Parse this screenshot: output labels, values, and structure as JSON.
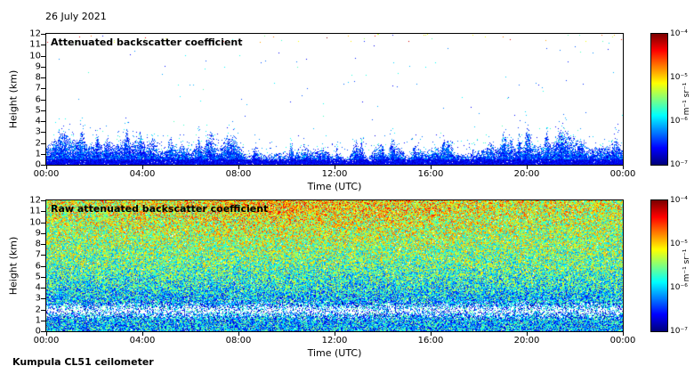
{
  "figure": {
    "date_label": "26 July 2021",
    "footer": "Kumpula CL51 ceilometer"
  },
  "chart_data": [
    {
      "type": "heatmap",
      "title": "Attenuated backscatter coefficient",
      "xlabel": "Time (UTC)",
      "ylabel": "Height (km)",
      "x_tick_labels": [
        "00:00",
        "04:00",
        "08:00",
        "12:00",
        "16:00",
        "20:00",
        "00:00"
      ],
      "y_tick_labels": [
        "0",
        "1",
        "2",
        "3",
        "4",
        "5",
        "6",
        "7",
        "8",
        "9",
        "10",
        "11",
        "12"
      ],
      "x_range_hours": [
        0,
        24
      ],
      "y_range_km": [
        0,
        12
      ],
      "colormap": "jet",
      "colorbar": {
        "min": 1e-07,
        "max": 0.0001,
        "scale": "log",
        "tick_labels": [
          "10⁻⁴",
          "10⁻⁵",
          "10⁻⁶",
          "10⁻⁷"
        ],
        "unit": "m⁻¹ sr⁻¹"
      },
      "features": "White (below detection) above the boundary layer; dense blue aerosol signal from the surface up to a ragged 1-3 km top, higher near 00:00 and after 16:00; sparse multicoloured noise specks near 12 km",
      "render": {
        "style": "attenuated",
        "seed": 1337
      }
    },
    {
      "type": "heatmap",
      "title": "Raw attenuated backscatter coefficient",
      "xlabel": "Time (UTC)",
      "ylabel": "Height (km)",
      "x_tick_labels": [
        "00:00",
        "04:00",
        "08:00",
        "12:00",
        "16:00",
        "20:00",
        "00:00"
      ],
      "y_tick_labels": [
        "0",
        "1",
        "2",
        "3",
        "4",
        "5",
        "6",
        "7",
        "8",
        "9",
        "10",
        "11",
        "12"
      ],
      "x_range_hours": [
        0,
        24
      ],
      "y_range_km": [
        0,
        12
      ],
      "colormap": "jet",
      "colorbar": {
        "min": 1e-07,
        "max": 0.0001,
        "scale": "log",
        "tick_labels": [
          "10⁻⁴",
          "10⁻⁵",
          "10⁻⁶",
          "10⁻⁷"
        ],
        "unit": "m⁻¹ sr⁻¹"
      },
      "features": "Full-field speckle noise: yellow-green above ~6 km (brightest 08:00-14:00 near the top), cyan-blue 2.5-6 km, whitish band near 2 km, blue-cyan boundary layer below",
      "render": {
        "style": "raw",
        "seed": 20210726
      }
    }
  ]
}
